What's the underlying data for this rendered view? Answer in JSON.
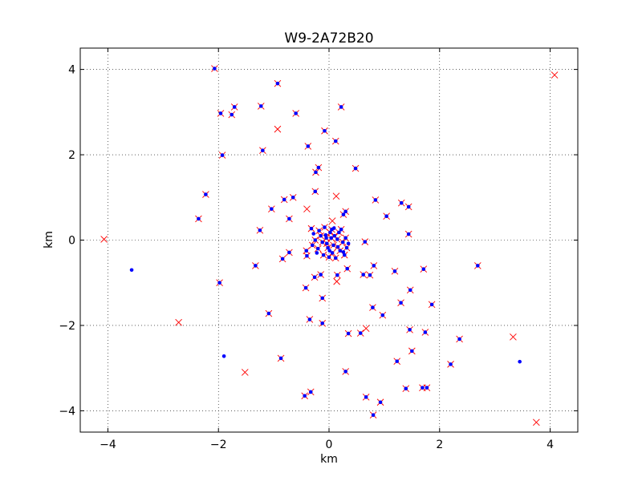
{
  "chart_data": {
    "type": "scatter",
    "title": "W9-2A72B20",
    "xlabel": "km",
    "ylabel": "km",
    "xlim": [
      -4.5,
      4.5
    ],
    "ylim": [
      -4.5,
      4.5
    ],
    "xticks": [
      -4,
      -2,
      0,
      2,
      4
    ],
    "yticks": [
      -4,
      -2,
      0,
      2,
      4
    ],
    "x_tick_labels": [
      "−4",
      "−2",
      "0",
      "2",
      "4"
    ],
    "y_tick_labels": [
      "−4",
      "−2",
      "0",
      "2",
      "4"
    ],
    "grid": true,
    "grid_style": "dotted",
    "series": [
      {
        "marker": "x",
        "color": "#ff0000",
        "points": [
          [
            -2.07,
            4.02
          ],
          [
            -0.93,
            3.67
          ],
          [
            -1.96,
            2.97
          ],
          [
            -1.71,
            3.12
          ],
          [
            -1.23,
            3.14
          ],
          [
            -1.76,
            2.94
          ],
          [
            -0.6,
            2.97
          ],
          [
            0.22,
            3.12
          ],
          [
            -0.93,
            2.6
          ],
          [
            -0.08,
            2.56
          ],
          [
            0.12,
            2.32
          ],
          [
            -1.2,
            2.1
          ],
          [
            -0.38,
            2.2
          ],
          [
            -1.93,
            1.99
          ],
          [
            0.48,
            1.68
          ],
          [
            -0.19,
            1.7
          ],
          [
            -0.24,
            1.59
          ],
          [
            -2.23,
            1.07
          ],
          [
            -0.65,
            1.0
          ],
          [
            -0.81,
            0.95
          ],
          [
            -0.25,
            1.14
          ],
          [
            0.13,
            1.03
          ],
          [
            0.84,
            0.94
          ],
          [
            1.31,
            0.87
          ],
          [
            1.44,
            0.78
          ],
          [
            -1.04,
            0.73
          ],
          [
            -0.4,
            0.73
          ],
          [
            -0.72,
            0.5
          ],
          [
            -2.36,
            0.5
          ],
          [
            0.3,
            0.67
          ],
          [
            0.26,
            0.6
          ],
          [
            1.04,
            0.56
          ],
          [
            0.06,
            0.45
          ],
          [
            -1.25,
            0.23
          ],
          [
            -0.32,
            0.27
          ],
          [
            1.44,
            0.14
          ],
          [
            -4.07,
            0.02
          ],
          [
            0.65,
            -0.04
          ],
          [
            -0.72,
            -0.29
          ],
          [
            -0.41,
            -0.25
          ],
          [
            -0.4,
            -0.37
          ],
          [
            -0.84,
            -0.44
          ],
          [
            -1.33,
            -0.6
          ],
          [
            0.81,
            -0.6
          ],
          [
            0.33,
            -0.67
          ],
          [
            -0.26,
            -0.87
          ],
          [
            -0.15,
            -0.81
          ],
          [
            0.15,
            -0.82
          ],
          [
            0.62,
            -0.81
          ],
          [
            0.74,
            -0.82
          ],
          [
            1.19,
            -0.73
          ],
          [
            1.71,
            -0.68
          ],
          [
            2.69,
            -0.6
          ],
          [
            0.14,
            -0.97
          ],
          [
            -1.98,
            -1.0
          ],
          [
            -0.42,
            -1.12
          ],
          [
            1.47,
            -1.17
          ],
          [
            -0.12,
            -1.36
          ],
          [
            1.3,
            -1.47
          ],
          [
            0.79,
            -1.58
          ],
          [
            1.86,
            -1.51
          ],
          [
            -1.09,
            -1.72
          ],
          [
            -0.35,
            -1.86
          ],
          [
            0.97,
            -1.76
          ],
          [
            -2.72,
            -1.93
          ],
          [
            -0.12,
            -1.95
          ],
          [
            0.67,
            -2.07
          ],
          [
            0.35,
            -2.19
          ],
          [
            0.57,
            -2.18
          ],
          [
            1.46,
            -2.1
          ],
          [
            1.74,
            -2.16
          ],
          [
            2.36,
            -2.32
          ],
          [
            3.33,
            -2.27
          ],
          [
            1.5,
            -2.6
          ],
          [
            -0.87,
            -2.77
          ],
          [
            1.23,
            -2.84
          ],
          [
            2.2,
            -2.91
          ],
          [
            0.3,
            -3.08
          ],
          [
            -1.52,
            -3.1
          ],
          [
            1.39,
            -3.48
          ],
          [
            1.69,
            -3.46
          ],
          [
            1.77,
            -3.46
          ],
          [
            -0.33,
            -3.56
          ],
          [
            -0.44,
            -3.65
          ],
          [
            0.67,
            -3.68
          ],
          [
            0.93,
            -3.8
          ],
          [
            0.8,
            -4.1
          ],
          [
            4.08,
            3.87
          ],
          [
            3.75,
            -4.27
          ],
          [
            0.02,
            0.18
          ],
          [
            -0.05,
            0.05
          ],
          [
            0.08,
            -0.12
          ],
          [
            -0.12,
            -0.05
          ],
          [
            0.15,
            0.02
          ],
          [
            0.06,
            -0.3
          ],
          [
            -0.18,
            0.22
          ],
          [
            0.2,
            -0.25
          ],
          [
            -0.02,
            -0.18
          ],
          [
            0.1,
            0.1
          ],
          [
            -0.08,
            0.3
          ],
          [
            0.25,
            -0.05
          ],
          [
            -0.2,
            -0.2
          ],
          [
            0.05,
            0.25
          ],
          [
            0.18,
            0.18
          ],
          [
            -0.15,
            0.1
          ],
          [
            0.28,
            -0.35
          ],
          [
            0.0,
            -0.4
          ],
          [
            -0.1,
            -0.35
          ],
          [
            0.3,
            0.05
          ],
          [
            -0.25,
            0.0
          ],
          [
            0.12,
            -0.42
          ],
          [
            0.32,
            -0.18
          ],
          [
            -0.3,
            -0.12
          ],
          [
            0.22,
            0.25
          ],
          [
            0.04,
            0.05
          ],
          [
            -0.04,
            -0.08
          ],
          [
            0.16,
            -0.16
          ]
        ]
      },
      {
        "marker": "dot",
        "color": "#0000ff",
        "points": [
          [
            -2.07,
            4.02
          ],
          [
            -0.93,
            3.67
          ],
          [
            -1.96,
            2.97
          ],
          [
            -1.71,
            3.12
          ],
          [
            -1.23,
            3.14
          ],
          [
            -1.76,
            2.94
          ],
          [
            -0.6,
            2.97
          ],
          [
            0.22,
            3.12
          ],
          [
            -0.08,
            2.56
          ],
          [
            0.12,
            2.32
          ],
          [
            -1.2,
            2.1
          ],
          [
            -0.38,
            2.2
          ],
          [
            -1.93,
            1.99
          ],
          [
            0.48,
            1.68
          ],
          [
            -0.19,
            1.7
          ],
          [
            -0.24,
            1.59
          ],
          [
            -2.23,
            1.07
          ],
          [
            -0.65,
            1.0
          ],
          [
            -0.81,
            0.95
          ],
          [
            -0.25,
            1.14
          ],
          [
            0.84,
            0.94
          ],
          [
            1.31,
            0.87
          ],
          [
            1.44,
            0.78
          ],
          [
            -1.04,
            0.73
          ],
          [
            -0.72,
            0.5
          ],
          [
            -2.36,
            0.5
          ],
          [
            0.3,
            0.67
          ],
          [
            0.26,
            0.6
          ],
          [
            1.04,
            0.56
          ],
          [
            -1.25,
            0.23
          ],
          [
            -0.32,
            0.27
          ],
          [
            1.44,
            0.14
          ],
          [
            0.65,
            -0.04
          ],
          [
            -0.72,
            -0.29
          ],
          [
            -0.41,
            -0.25
          ],
          [
            -0.4,
            -0.37
          ],
          [
            -0.84,
            -0.44
          ],
          [
            -1.33,
            -0.6
          ],
          [
            0.81,
            -0.6
          ],
          [
            0.33,
            -0.67
          ],
          [
            -0.26,
            -0.87
          ],
          [
            -0.15,
            -0.81
          ],
          [
            0.15,
            -0.82
          ],
          [
            0.62,
            -0.81
          ],
          [
            0.74,
            -0.82
          ],
          [
            1.19,
            -0.73
          ],
          [
            1.71,
            -0.68
          ],
          [
            2.69,
            -0.6
          ],
          [
            -1.98,
            -1.0
          ],
          [
            -0.42,
            -1.12
          ],
          [
            1.47,
            -1.17
          ],
          [
            -0.12,
            -1.36
          ],
          [
            1.3,
            -1.47
          ],
          [
            0.79,
            -1.58
          ],
          [
            1.86,
            -1.51
          ],
          [
            -1.09,
            -1.72
          ],
          [
            -0.35,
            -1.86
          ],
          [
            0.97,
            -1.76
          ],
          [
            -0.12,
            -1.95
          ],
          [
            0.35,
            -2.19
          ],
          [
            0.57,
            -2.18
          ],
          [
            1.46,
            -2.1
          ],
          [
            1.74,
            -2.16
          ],
          [
            2.36,
            -2.32
          ],
          [
            1.5,
            -2.6
          ],
          [
            -0.87,
            -2.77
          ],
          [
            1.23,
            -2.84
          ],
          [
            2.2,
            -2.91
          ],
          [
            0.3,
            -3.08
          ],
          [
            1.39,
            -3.48
          ],
          [
            1.69,
            -3.46
          ],
          [
            1.77,
            -3.46
          ],
          [
            -0.33,
            -3.56
          ],
          [
            -0.44,
            -3.65
          ],
          [
            0.67,
            -3.68
          ],
          [
            0.93,
            -3.8
          ],
          [
            0.8,
            -4.1
          ],
          [
            -3.57,
            -0.7
          ],
          [
            -1.9,
            -2.72
          ],
          [
            3.45,
            -2.85
          ],
          [
            0.02,
            0.18
          ],
          [
            -0.05,
            0.05
          ],
          [
            0.08,
            -0.12
          ],
          [
            -0.12,
            -0.05
          ],
          [
            0.15,
            0.02
          ],
          [
            0.06,
            -0.3
          ],
          [
            -0.18,
            0.22
          ],
          [
            0.2,
            -0.25
          ],
          [
            -0.02,
            -0.18
          ],
          [
            0.1,
            0.1
          ],
          [
            -0.08,
            0.3
          ],
          [
            0.25,
            -0.05
          ],
          [
            -0.2,
            -0.2
          ],
          [
            0.05,
            0.25
          ],
          [
            0.18,
            0.18
          ],
          [
            -0.15,
            0.1
          ],
          [
            0.28,
            -0.35
          ],
          [
            0.0,
            -0.4
          ],
          [
            -0.1,
            -0.35
          ],
          [
            0.3,
            0.05
          ],
          [
            -0.25,
            0.0
          ],
          [
            0.12,
            -0.42
          ],
          [
            0.32,
            -0.18
          ],
          [
            -0.3,
            -0.12
          ],
          [
            0.22,
            0.25
          ],
          [
            0.04,
            0.05
          ],
          [
            -0.04,
            -0.08
          ],
          [
            0.16,
            -0.16
          ],
          [
            -0.06,
            0.12
          ],
          [
            0.09,
            0.28
          ],
          [
            -0.22,
            -0.3
          ],
          [
            0.26,
            -0.28
          ],
          [
            0.35,
            -0.08
          ],
          [
            -0.28,
            0.15
          ],
          [
            0.01,
            -0.25
          ]
        ]
      }
    ]
  }
}
